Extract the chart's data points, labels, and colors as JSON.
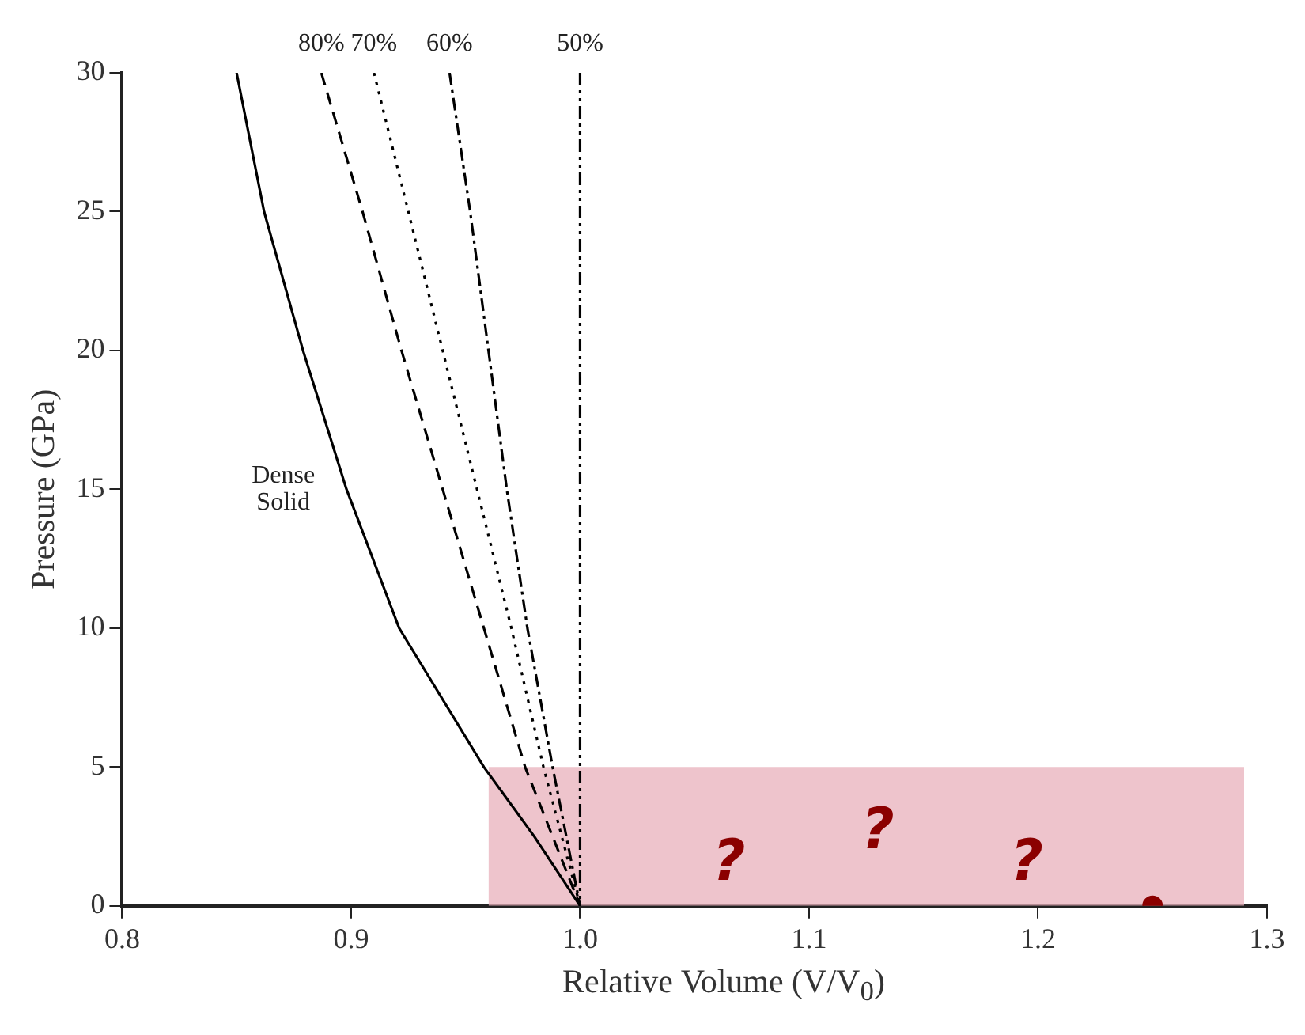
{
  "chart_data": {
    "type": "line",
    "xlabel": "Relative Volume (V/V$_{0}$)",
    "ylabel": "Pressure (GPa)",
    "xlim": [
      0.8,
      1.3
    ],
    "xticks": [
      0.8,
      0.9,
      {
        "value": 1,
        "label": "1.0"
      },
      1.1,
      1.2,
      1.3
    ],
    "ylim": [
      0,
      30
    ],
    "yticks": [
      0,
      5,
      10,
      15,
      20,
      25,
      30
    ],
    "grid": false,
    "legend": false,
    "marker": "none",
    "series": [
      {
        "name": "Dense Solid",
        "color": "#000000",
        "line_style": "solid",
        "x": [
          0.85,
          0.862,
          0.879,
          0.898,
          0.921,
          0.958,
          0.98,
          1.0
        ],
        "values": [
          30,
          25,
          20,
          15,
          10,
          5,
          2.5,
          0
        ]
      },
      {
        "name": "80%",
        "color": "#000000",
        "line_style": "dashed",
        "x": [
          0.887,
          0.905,
          0.922,
          0.94,
          0.958,
          0.976,
          1.0
        ],
        "values": [
          30,
          25,
          20,
          15,
          10,
          5,
          0
        ]
      },
      {
        "name": "70%",
        "color": "#000000",
        "line_style": "dotted",
        "x": [
          0.91,
          0.925,
          0.94,
          0.955,
          0.97,
          0.984,
          1.0
        ],
        "values": [
          30,
          25,
          20,
          15,
          10,
          5,
          0
        ]
      },
      {
        "name": "60%",
        "color": "#000000",
        "line_style": "dashdot",
        "x": [
          0.943,
          0.952,
          0.96,
          0.968,
          0.977,
          0.988,
          1.0
        ],
        "values": [
          30,
          25,
          20,
          15,
          10,
          5,
          0
        ]
      },
      {
        "name": "50%",
        "color": "#000000",
        "line_style": "dashdotdot",
        "x": [
          1.0,
          1.0,
          1.0
        ],
        "values": [
          30,
          15,
          0
        ]
      },
      {
        "type": "area",
        "color": "#e8b0bb",
        "x": [
          0.96,
          1.29
        ],
        "values": [
          5,
          5
        ]
      },
      {
        "type": "scatter",
        "color": "#8b0000",
        "marker": "circle",
        "x": [
          1.25
        ],
        "values": [
          0
        ]
      }
    ],
    "annotations": [
      "?",
      "?",
      "?"
    ]
  }
}
